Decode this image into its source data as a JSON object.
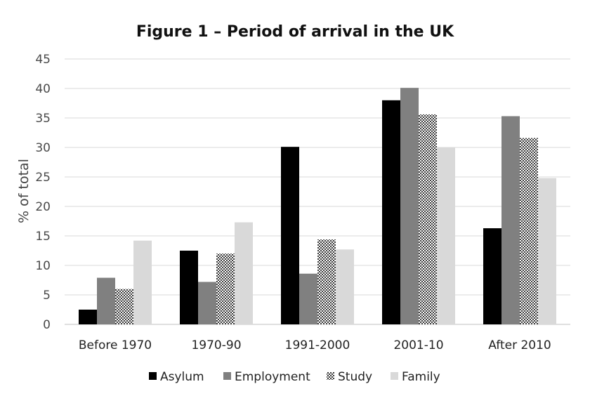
{
  "chart_data": {
    "type": "bar",
    "title": "Figure 1 – Period of arrival in the UK",
    "ylabel": "% of total",
    "xlabel": "",
    "ylim": [
      0,
      45
    ],
    "yticks": [
      "0",
      "5",
      "10",
      "15",
      "20",
      "25",
      "30",
      "35",
      "40",
      "45"
    ],
    "grid": true,
    "legend_position": "bottom",
    "categories": [
      "Before 1970",
      "1970-90",
      "1991-2000",
      "2001-10",
      "After  2010"
    ],
    "series": [
      {
        "name": "Asylum",
        "values": [
          2.5,
          12.5,
          30.1,
          38.0,
          16.3
        ],
        "color": "#000000",
        "pattern": "solid"
      },
      {
        "name": "Employment",
        "values": [
          7.9,
          7.2,
          8.6,
          40.1,
          35.3
        ],
        "color": "#808080",
        "pattern": "solid"
      },
      {
        "name": "Study",
        "values": [
          6.0,
          12.0,
          14.4,
          35.6,
          31.6
        ],
        "color": "#555555",
        "pattern": "dotted"
      },
      {
        "name": "Family",
        "values": [
          14.2,
          17.3,
          12.7,
          30.0,
          24.8
        ],
        "color": "#d9d9d9",
        "pattern": "solid"
      }
    ]
  }
}
